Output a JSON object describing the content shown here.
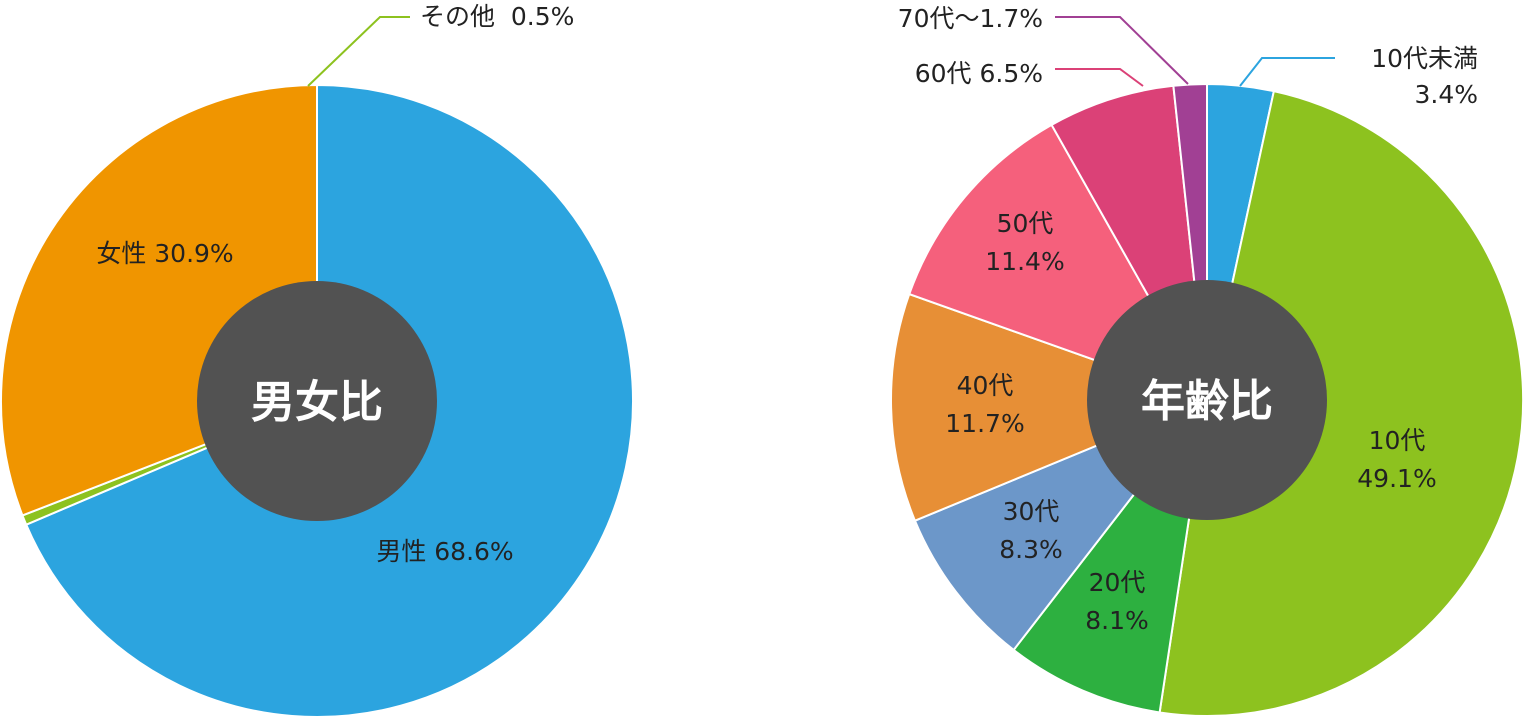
{
  "chart_data": [
    {
      "type": "pie",
      "title": "男女比",
      "center_color": "#525252",
      "slices": [
        {
          "label": "男性 68.6%",
          "value": 68.6,
          "color": "#2CA4DF"
        },
        {
          "label": "その他  0.5%",
          "value": 0.5,
          "color": "#8DC21F"
        },
        {
          "label": "女性 30.9%",
          "value": 30.9,
          "color": "#F09500"
        }
      ]
    },
    {
      "type": "pie",
      "title": "年齢比",
      "center_color": "#525252",
      "slices": [
        {
          "label": [
            "10代未満",
            "3.4%"
          ],
          "value": 3.4,
          "color": "#2CA4DF"
        },
        {
          "label": [
            "10代",
            "49.1%"
          ],
          "value": 49.1,
          "color": "#8DC21F"
        },
        {
          "label": [
            "20代",
            "8.1%"
          ],
          "value": 8.1,
          "color": "#2DB040"
        },
        {
          "label": [
            "30代",
            "8.3%"
          ],
          "value": 8.3,
          "color": "#6C97C9"
        },
        {
          "label": [
            "40代",
            "11.7%"
          ],
          "value": 11.7,
          "color": "#E78F36"
        },
        {
          "label": [
            "50代",
            "11.4%"
          ],
          "value": 11.4,
          "color": "#F5607C"
        },
        {
          "label": "60代 6.5%",
          "value": 6.5,
          "color": "#DB4177"
        },
        {
          "label": "70代～1.7%",
          "value": 1.7,
          "color": "#A14094"
        }
      ]
    }
  ]
}
